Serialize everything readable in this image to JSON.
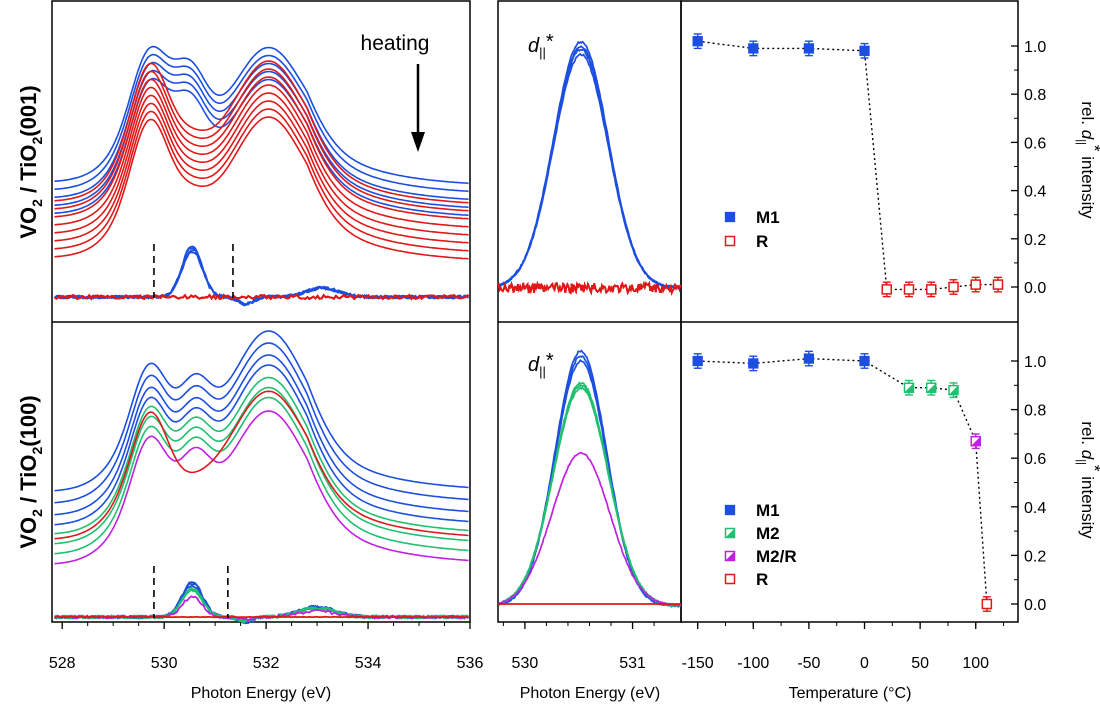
{
  "colors": {
    "M1": "#1c4fe0",
    "M2": "#20c070",
    "M2R": "#c020e0",
    "R": "#e01818",
    "axis": "#000000",
    "dash": "#000000"
  },
  "left_axis": {
    "xlabel": "Photon Energy (eV)",
    "ticks": [
      "528",
      "530",
      "532",
      "534",
      "536"
    ]
  },
  "mid_axis": {
    "xlabel": "Photon Energy (eV)",
    "ticks": [
      "530",
      "531"
    ]
  },
  "right_axis": {
    "xlabel": "Temperature (°C)",
    "ticks": [
      "-150",
      "-100",
      "-50",
      "0",
      "50",
      "100"
    ],
    "yticks": [
      "0.0",
      "0.2",
      "0.4",
      "0.6",
      "0.8",
      "1.0"
    ]
  },
  "labels": {
    "top_row": {
      "vo": "VO",
      "sub": "2",
      "rest": " / TiO",
      "sub2": "2",
      "orient": "(001)"
    },
    "bottom_row": {
      "vo": "VO",
      "sub": "2",
      "rest": " / TiO",
      "sub2": "2",
      "orient": "(100)"
    },
    "heating": "heating",
    "dstar": {
      "d": "d",
      "sub": "||",
      "sup": "*"
    },
    "rel_label": {
      "pre": "rel. ",
      "d": "d",
      "sub": "||",
      "sup": "*",
      "post": " intensity"
    }
  },
  "chart_data": [
    {
      "type": "line",
      "panel": "top-left XAS spectra",
      "xlabel": "Photon Energy (eV)",
      "xlim": [
        527.8,
        536
      ],
      "series_groups": [
        {
          "name": "M1",
          "count": 5,
          "offset_step": 0.15
        },
        {
          "name": "R",
          "count": 8,
          "offset_step": 0.12
        }
      ],
      "difference_window": [
        529.8,
        531.35
      ]
    },
    {
      "type": "line",
      "panel": "bottom-left XAS spectra",
      "xlabel": "Photon Energy (eV)",
      "xlim": [
        527.8,
        536
      ],
      "series_groups": [
        {
          "name": "M1",
          "count": 4
        },
        {
          "name": "M2",
          "count": 3
        },
        {
          "name": "M2/R",
          "count": 1
        },
        {
          "name": "R",
          "count": 1
        }
      ],
      "difference_window": [
        529.8,
        531.25
      ]
    },
    {
      "type": "line",
      "panel": "top-middle d|| difference peak",
      "xlabel": "Photon Energy (eV)",
      "xlim": [
        529.75,
        531.45
      ],
      "peak_center": 530.5,
      "peak_amplitudes": {
        "M1": [
          1.0,
          0.98,
          0.97,
          0.95
        ],
        "R": [
          0.0,
          0.0,
          0.0,
          0.0,
          0.0,
          0.0
        ]
      }
    },
    {
      "type": "line",
      "panel": "bottom-middle d|| difference peak",
      "xlabel": "Photon Energy (eV)",
      "xlim": [
        529.75,
        531.45
      ],
      "peak_center": 530.5,
      "peak_amplitudes": {
        "M1": [
          1.0,
          0.98,
          0.96
        ],
        "M2": [
          0.85,
          0.84,
          0.83
        ],
        "M2/R": [
          0.6
        ],
        "R": [
          0.0
        ]
      }
    },
    {
      "type": "scatter",
      "panel": "top-right",
      "xlabel": "Temperature (°C)",
      "ylabel": "rel. d|| * intensity",
      "xlim": [
        -165,
        138
      ],
      "ylim": [
        -0.12,
        1.12
      ],
      "legend": [
        "M1",
        "R"
      ],
      "legend_placement": "center-left",
      "series": [
        {
          "name": "M1",
          "marker": "filled-square",
          "x": [
            -150,
            -100,
            -50,
            0
          ],
          "y": [
            1.02,
            0.99,
            0.99,
            0.98
          ],
          "err": [
            0.03,
            0.03,
            0.03,
            0.03
          ]
        },
        {
          "name": "R",
          "marker": "open-square",
          "x": [
            20,
            40,
            60,
            80,
            100,
            120
          ],
          "y": [
            -0.01,
            -0.01,
            -0.01,
            0.0,
            0.01,
            0.01
          ],
          "err": [
            0.03,
            0.03,
            0.03,
            0.03,
            0.03,
            0.03
          ]
        }
      ]
    },
    {
      "type": "scatter",
      "panel": "bottom-right",
      "xlabel": "Temperature (°C)",
      "ylabel": "rel. d|| * intensity",
      "xlim": [
        -165,
        138
      ],
      "ylim": [
        -0.12,
        1.12
      ],
      "legend": [
        "M1",
        "M2",
        "M2/R",
        "R"
      ],
      "legend_placement": "bottom-left",
      "series": [
        {
          "name": "M1",
          "marker": "filled-square",
          "x": [
            -150,
            -100,
            -50,
            0
          ],
          "y": [
            1.0,
            0.99,
            1.01,
            1.0
          ],
          "err": [
            0.03,
            0.03,
            0.03,
            0.03
          ]
        },
        {
          "name": "M2",
          "marker": "half-square",
          "x": [
            40,
            60,
            80
          ],
          "y": [
            0.89,
            0.89,
            0.88
          ],
          "err": [
            0.03,
            0.03,
            0.03
          ]
        },
        {
          "name": "M2/R",
          "marker": "half-square",
          "x": [
            100
          ],
          "y": [
            0.67
          ],
          "err": [
            0.03
          ]
        },
        {
          "name": "R",
          "marker": "open-square",
          "x": [
            110
          ],
          "y": [
            0.0
          ],
          "err": [
            0.03
          ]
        }
      ]
    }
  ]
}
